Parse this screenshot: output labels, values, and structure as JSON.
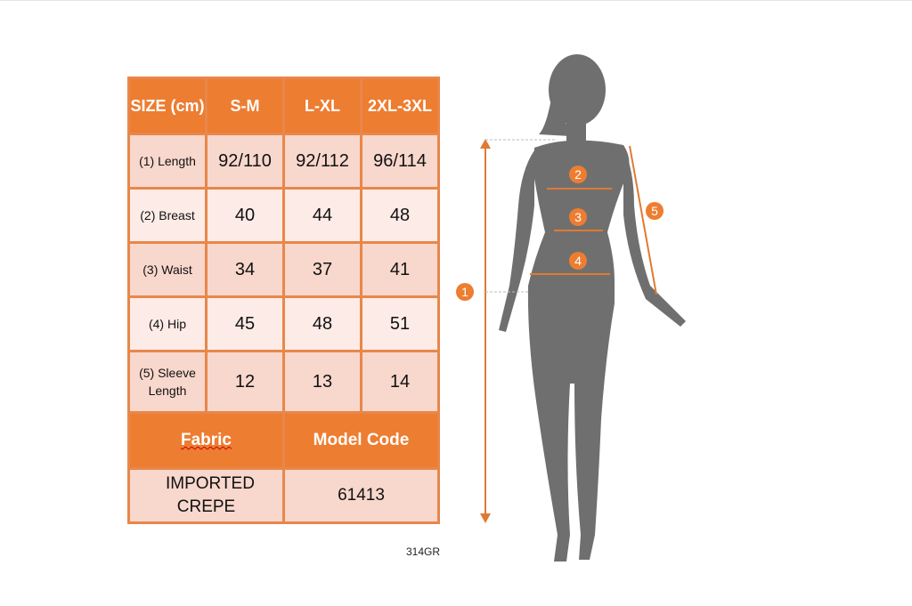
{
  "table": {
    "header": [
      "SIZE (cm)",
      "S-M",
      "L-XL",
      "2XL-3XL"
    ],
    "rows": [
      {
        "label": "(1) Length",
        "values": [
          "92/110",
          "92/112",
          "96/114"
        ]
      },
      {
        "label": "(2) Breast",
        "values": [
          "40",
          "44",
          "48"
        ]
      },
      {
        "label": "(3) Waist",
        "values": [
          "34",
          "37",
          "41"
        ]
      },
      {
        "label": "(4) Hip",
        "values": [
          "45",
          "48",
          "51"
        ]
      },
      {
        "label": "(5) Sleeve Length",
        "values": [
          "12",
          "13",
          "14"
        ]
      }
    ],
    "fabric_label": "Fabric",
    "model_code_label": "Model Code",
    "fabric_value": "IMPORTED CREPE",
    "model_code_value": "61413"
  },
  "product_code": "314GR",
  "figure": {
    "markers": [
      "1",
      "2",
      "3",
      "4",
      "5"
    ]
  },
  "colors": {
    "accent": "#ed7d31",
    "silhouette": "#6f6f6f"
  }
}
